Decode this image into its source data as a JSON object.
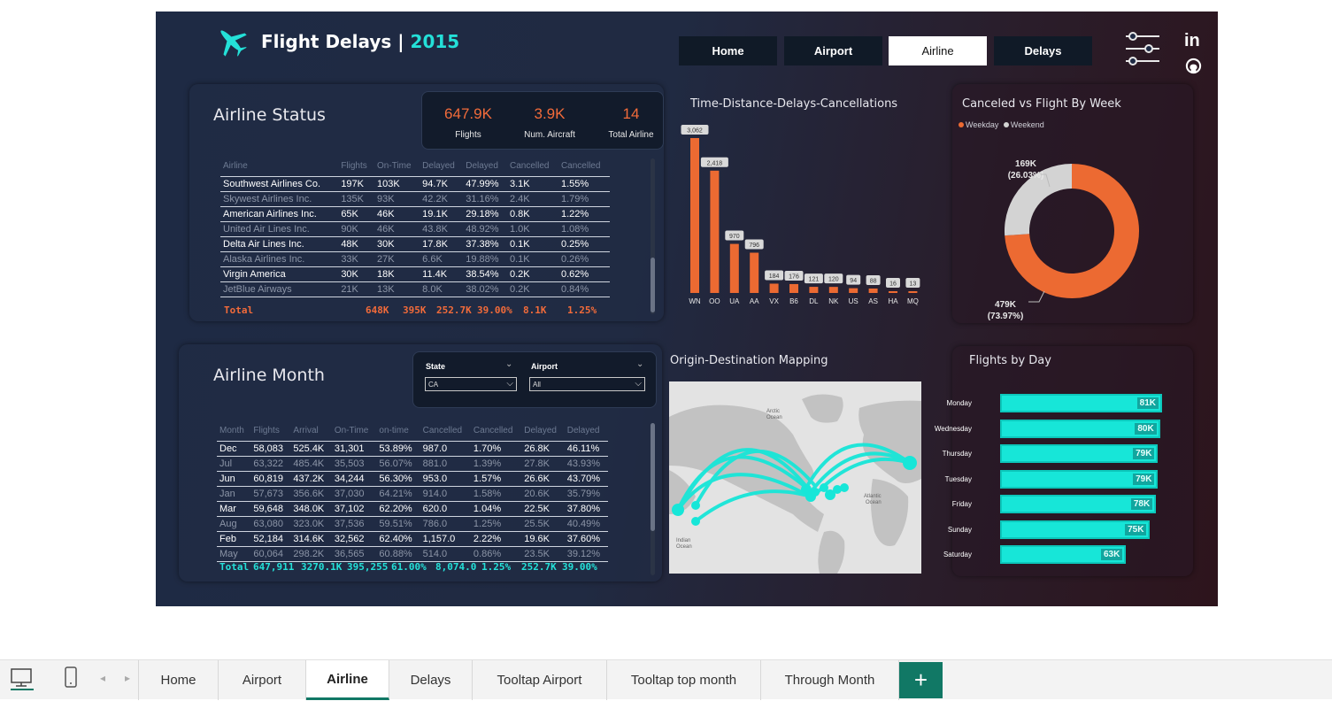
{
  "header": {
    "title": "Flight Delays",
    "separator": "|",
    "year": "2015"
  },
  "nav": [
    "Home",
    "Airport",
    "Airline",
    "Delays"
  ],
  "nav_active": 2,
  "social": {
    "linkedin": "in"
  },
  "status": {
    "title": "Airline Status",
    "kpis": [
      {
        "value": "647.9K",
        "label": "Flights"
      },
      {
        "value": "3.9K",
        "label": "Num. Aircraft"
      },
      {
        "value": "14",
        "label": "Total Airline"
      }
    ],
    "columns": [
      "Airline",
      "Flights",
      "On-Time",
      "Delayed",
      "Delayed",
      "Cancelled",
      "Cancelled"
    ],
    "rows": [
      [
        "Southwest Airlines Co.",
        "197K",
        "103K",
        "94.7K",
        "47.99%",
        "3.1K",
        "1.55%"
      ],
      [
        "Skywest Airlines Inc.",
        "135K",
        "93K",
        "42.2K",
        "31.16%",
        "2.4K",
        "1.79%"
      ],
      [
        "American Airlines Inc.",
        "65K",
        "46K",
        "19.1K",
        "29.18%",
        "0.8K",
        "1.22%"
      ],
      [
        "United Air Lines Inc.",
        "90K",
        "46K",
        "43.8K",
        "48.92%",
        "1.0K",
        "1.08%"
      ],
      [
        "Delta Air Lines Inc.",
        "48K",
        "30K",
        "17.8K",
        "37.38%",
        "0.1K",
        "0.25%"
      ],
      [
        "Alaska Airlines Inc.",
        "33K",
        "27K",
        "6.6K",
        "19.88%",
        "0.1K",
        "0.26%"
      ],
      [
        "Virgin America",
        "30K",
        "18K",
        "11.4K",
        "38.54%",
        "0.2K",
        "0.62%"
      ],
      [
        "JetBlue Airways",
        "21K",
        "13K",
        "8.0K",
        "38.02%",
        "0.2K",
        "0.84%"
      ]
    ],
    "total": [
      "Total",
      "648K",
      "395K",
      "252.7K",
      "39.00%",
      "8.1K",
      "1.25%"
    ]
  },
  "chart_data": [
    {
      "type": "bar",
      "title": "Time-Distance-Delays-Cancellations",
      "categories": [
        "WN",
        "OO",
        "UA",
        "AA",
        "VX",
        "B6",
        "DL",
        "NK",
        "US",
        "AS",
        "HA",
        "MQ"
      ],
      "values": [
        3062,
        2418,
        970,
        796,
        184,
        176,
        121,
        120,
        94,
        88,
        16,
        13
      ],
      "labels": [
        "3,062",
        "2,418",
        "970",
        "796",
        "184",
        "176",
        "121",
        "120",
        "94",
        "88",
        "16",
        "13"
      ],
      "color": "#ec6a32"
    },
    {
      "type": "pie",
      "title": "Canceled vs Flight By Week",
      "series": [
        {
          "name": "Weekday",
          "value": 479,
          "label": "479K",
          "pct": "(73.97%)",
          "color": "#ec6a32"
        },
        {
          "name": "Weekend",
          "value": 169,
          "label": "169K",
          "pct": "(26.03%)",
          "color": "#d3d3d3"
        }
      ],
      "legend_placement": "top-left"
    },
    {
      "type": "bar",
      "title": "Flights by Day",
      "orientation": "horizontal",
      "categories": [
        "Monday",
        "Wednesday",
        "Thursday",
        "Tuesday",
        "Friday",
        "Sunday",
        "Saturday"
      ],
      "values": [
        81,
        80,
        79,
        79,
        78,
        75,
        63
      ],
      "labels": [
        "81K",
        "80K",
        "79K",
        "79K",
        "78K",
        "75K",
        "63K"
      ],
      "color": "#17e6d8"
    }
  ],
  "month": {
    "title": "Airline Month",
    "slicers": [
      {
        "label": "State",
        "value": "CA"
      },
      {
        "label": "Airport",
        "value": "All"
      }
    ],
    "columns": [
      "Month",
      "Flights",
      "Arrival",
      "On-Time",
      "on-time",
      "Cancelled",
      "Cancelled",
      "Delayed",
      "Delayed"
    ],
    "rows": [
      [
        "Dec",
        "58,083",
        "525.4K",
        "31,301",
        "53.89%",
        "987.0",
        "1.70%",
        "26.8K",
        "46.11%"
      ],
      [
        "Jul",
        "63,322",
        "485.4K",
        "35,503",
        "56.07%",
        "881.0",
        "1.39%",
        "27.8K",
        "43.93%"
      ],
      [
        "Jun",
        "60,819",
        "437.2K",
        "34,244",
        "56.30%",
        "953.0",
        "1.57%",
        "26.6K",
        "43.70%"
      ],
      [
        "Jan",
        "57,673",
        "356.6K",
        "37,030",
        "64.21%",
        "914.0",
        "1.58%",
        "20.6K",
        "35.79%"
      ],
      [
        "Mar",
        "59,648",
        "348.0K",
        "37,102",
        "62.20%",
        "620.0",
        "1.04%",
        "22.5K",
        "37.80%"
      ],
      [
        "Aug",
        "63,080",
        "323.0K",
        "37,536",
        "59.51%",
        "786.0",
        "1.25%",
        "25.5K",
        "40.49%"
      ],
      [
        "Feb",
        "52,184",
        "314.6K",
        "32,562",
        "62.40%",
        "1,157.0",
        "2.22%",
        "19.6K",
        "37.60%"
      ],
      [
        "May",
        "60,064",
        "298.2K",
        "36,565",
        "60.88%",
        "514.0",
        "0.86%",
        "23.5K",
        "39.12%"
      ]
    ],
    "total": [
      "Total",
      "647,911",
      "3270.1K",
      "395,255",
      "61.00%",
      "8,074.0",
      "1.25%",
      "252.7K",
      "39.00%"
    ]
  },
  "map": {
    "title": "Origin-Destination Mapping",
    "labels": {
      "arctic": [
        "Arctic",
        "Ocean"
      ],
      "atlantic": [
        "Atlantic",
        "Ocean"
      ],
      "indian": [
        "Indian",
        "Ocean"
      ]
    }
  },
  "tabs": [
    "Home",
    "Airport",
    "Airline",
    "Delays",
    "Tooltap Airport",
    "Tooltap top month",
    "Through Month"
  ],
  "tab_active": 2,
  "add_tab_label": "+"
}
